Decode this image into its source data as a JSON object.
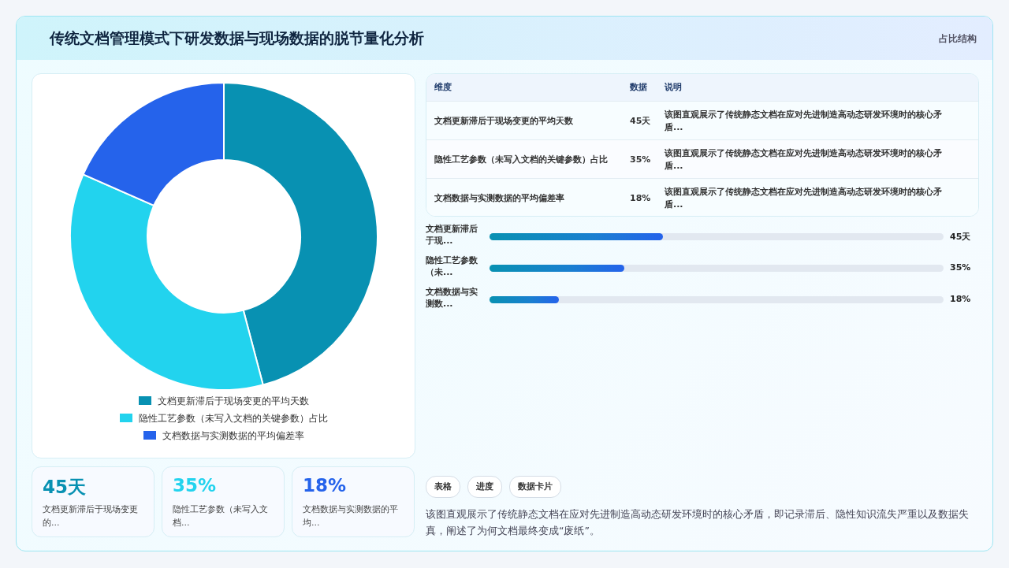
{
  "chart_data": [
    {
      "type": "donut",
      "title": "传统文档管理模式下研发数据与现场数据的脱节量化分析",
      "categories": [
        "文档更新滞后于现场变更的平均天数",
        "隐性工艺参数（未写入文档的关键参数）占比",
        "文档数据与实测数据的平均偏差率"
      ],
      "values": [
        45.9,
        35.7,
        18.4
      ],
      "colors": [
        "#0891b2",
        "#22d3ee",
        "#2563eb"
      ],
      "legend": "bottom"
    },
    {
      "type": "other",
      "annotations": [
        "维度",
        "数据",
        "说明",
        "文档更新滞后于现场变更的平均天数",
        "45天",
        "该图直观展示了传统静态文档在应对先进制造高动态研发环境时的核心矛盾...",
        "隐性工艺参数（未写入文档的关键参数）占比",
        "35%",
        "该图直观展示了传统静态文档在应对先进制造高动态研发环境时的核心矛盾...",
        "文档数据与实测数据的平均偏差率",
        "18%",
        "该图直观展示了传统静态文档在应对先进制造高动态研发环境时的核心矛盾..."
      ]
    },
    {
      "type": "bar",
      "orientation": "horizontal",
      "categories": [
        "文档更新滞后于现...",
        "隐性工艺参数（未...",
        "文档数据与实测数..."
      ],
      "values": [
        45,
        35,
        18
      ],
      "value_labels": [
        "45天",
        "35%",
        "18%"
      ],
      "xlim": [
        0,
        118
      ],
      "color": "#1a7fd0"
    },
    {
      "type": "other",
      "annotations": [
        "45天",
        "文档更新滞后于现场变更的...",
        "35%",
        "隐性工艺参数（未写入文档...",
        "18%",
        "文档数据与实测数据的平均..."
      ],
      "colors": [
        "#0891b2",
        "#22d3ee",
        "#2563eb"
      ]
    },
    {
      "type": "other",
      "annotations": [
        "占比结构",
        "表格",
        "进度",
        "数据卡片",
        "该图直观展示了传统静态文档在应对先进制造高动态研发环境时的核心矛盾，即记录滞后、隐性知识流失严重以及数据失真，阐述了为何文档最终变成“废纸”。"
      ]
    }
  ]
}
